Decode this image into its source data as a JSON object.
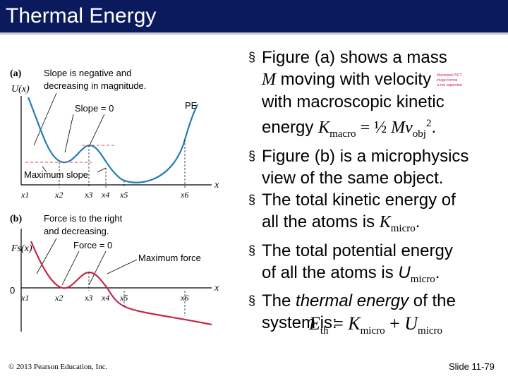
{
  "title": "Thermal Energy",
  "figure": {
    "a": {
      "panel_label": "(a)",
      "ylabel": "U(x)",
      "annotation_slope_negative": [
        "Slope is negative and",
        "decreasing in magnitude."
      ],
      "annotation_slope_zero": "Slope = 0",
      "curve_label": "PE",
      "annotation_max_slope": "Maximum slope",
      "x_axis": "x",
      "ticks": [
        "x1",
        "x2",
        "x3",
        "x4",
        "x5",
        "x6"
      ]
    },
    "b": {
      "panel_label": "(b)",
      "ylabel": "Fs(x)",
      "zero_label": "0",
      "annotation_force_right": [
        "Force is to the right",
        "and decreasing."
      ],
      "annotation_force_zero": "Force = 0",
      "annotation_max_force": "Maximum force",
      "x_axis": "x",
      "ticks": [
        "x1",
        "x2",
        "x3",
        "x4",
        "x5",
        "x6"
      ]
    },
    "colors": {
      "pe_curve": "#1f7fb0",
      "force_curve": "#c8264a",
      "guide_line": "#d64a4a"
    }
  },
  "bullets": {
    "b1": {
      "t1": "Figure (a) shows a mass",
      "m": "M",
      "t2": " moving with velocity",
      "t3": "with macroscopic kinetic",
      "t4": "energy ",
      "k": "K",
      "k_sub": "macro",
      "t5": " = ½ ",
      "mv": "Mv",
      "v_sub": "obj",
      "v_sup": "2",
      "t6": ".",
      "tiny_image_text": [
        "Macintosh PICT",
        "image format",
        "is not supported"
      ]
    },
    "b2": {
      "t1": "Figure (b) is a microphysics",
      "t2": "view of the same object."
    },
    "b3": {
      "t1": "The total kinetic energy of",
      "t2": "all the atoms is ",
      "k": "K",
      "k_sub": "micro",
      "t3": "."
    },
    "b4": {
      "t1": "The total potential energy",
      "t2": "of all the atoms is ",
      "u": "U",
      "u_sub": "micro",
      "t3": "."
    },
    "b5": {
      "t1": "The ",
      "em": "thermal energy",
      "t2": " of the",
      "t3": "system is:"
    }
  },
  "equation": {
    "lhs": "E",
    "lhs_sub": "th",
    "eq": " = ",
    "k": "K",
    "k_sub": "micro",
    "plus": " + ",
    "u": "U",
    "u_sub": "micro"
  },
  "footer": {
    "copyright": "© 2013 Pearson Education, Inc.",
    "slide": "Slide 11-79"
  }
}
